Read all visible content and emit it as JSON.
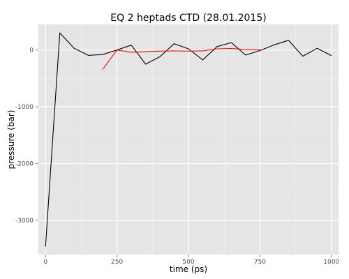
{
  "chart_data": {
    "type": "line",
    "title": "EQ 2 heptads CTD (28.01.2015)",
    "xlabel": "time (ps)",
    "ylabel": "pressure (bar)",
    "xlim": [
      -25,
      1025
    ],
    "ylim": [
      -3600,
      450
    ],
    "x_ticks": [
      0,
      250,
      500,
      750,
      1000
    ],
    "y_ticks": [
      -3000,
      -2000,
      -1000,
      0
    ],
    "x_tick_labels": [
      "0",
      "250",
      "500",
      "750",
      "1000"
    ],
    "y_tick_labels": [
      "-3000",
      "-2000",
      "-1000",
      "0"
    ],
    "grid": true,
    "panel_background": "#e5e5e5",
    "grid_major_color": "#ffffff",
    "grid_minor_color": "#f2f2f2",
    "series": [
      {
        "color": "#000000",
        "points": [
          [
            0,
            -3460
          ],
          [
            50,
            300
          ],
          [
            100,
            30
          ],
          [
            150,
            -95
          ],
          [
            200,
            -80
          ],
          [
            250,
            0
          ],
          [
            300,
            85
          ],
          [
            350,
            -250
          ],
          [
            400,
            -120
          ],
          [
            450,
            110
          ],
          [
            500,
            20
          ],
          [
            550,
            -175
          ],
          [
            600,
            60
          ],
          [
            650,
            130
          ],
          [
            700,
            -90
          ],
          [
            750,
            -10
          ],
          [
            800,
            90
          ],
          [
            850,
            170
          ],
          [
            900,
            -110
          ],
          [
            950,
            30
          ],
          [
            1000,
            -100
          ]
        ]
      },
      {
        "color": "#ff0000",
        "points": [
          [
            200,
            -340
          ],
          [
            250,
            0
          ],
          [
            300,
            -40
          ],
          [
            350,
            -30
          ],
          [
            400,
            -20
          ],
          [
            450,
            -15
          ],
          [
            500,
            -20
          ],
          [
            550,
            -15
          ],
          [
            600,
            20
          ],
          [
            650,
            25
          ],
          [
            700,
            10
          ],
          [
            750,
            0
          ]
        ]
      }
    ]
  }
}
